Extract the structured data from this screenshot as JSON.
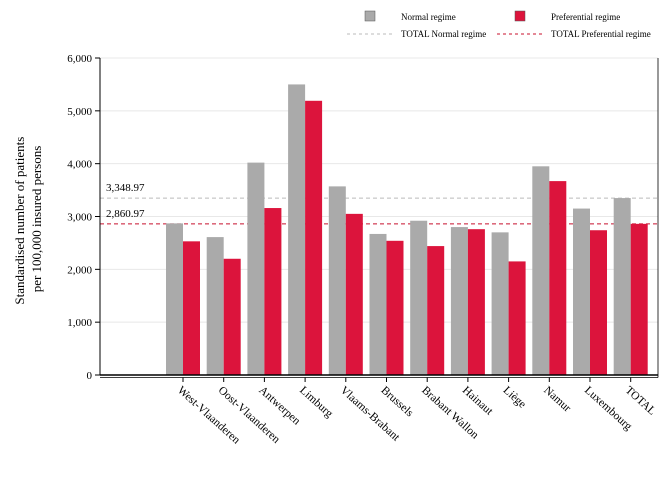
{
  "chart_data": {
    "type": "bar",
    "categories": [
      "West-Vlaanderen",
      "Oost-Vlaanderen",
      "Antwerpen",
      "Limburg",
      "Vlaams-Brabant",
      "Brussels",
      "Brabant Wallon",
      "Hainaut",
      "Liège",
      "Namur",
      "Luxembourg",
      "TOTAL"
    ],
    "series": [
      {
        "name": "Normal regime",
        "color": "#aaaaaa",
        "values": [
          2870,
          2610,
          4020,
          5500,
          3570,
          2670,
          2920,
          2800,
          2700,
          3950,
          3150,
          3349
        ]
      },
      {
        "name": "Preferential regime",
        "color": "#dc143c",
        "values": [
          2530,
          2200,
          3160,
          5190,
          3050,
          2540,
          2440,
          2760,
          2150,
          3670,
          2740,
          2861
        ]
      }
    ],
    "reference_lines": [
      {
        "name": "TOTAL Normal regime",
        "value": 3348.97,
        "label": "3,348.97",
        "color": "#bbbbbb"
      },
      {
        "name": "TOTAL Preferential regime",
        "value": 2860.97,
        "label": "2,860.97",
        "color": "#c8102e"
      }
    ],
    "ylabel_lines": [
      "Standardised number of patients",
      "per 100,000 insured persons"
    ],
    "xlabel": "",
    "ylim": [
      0,
      6000
    ],
    "yticks": [
      0,
      1000,
      2000,
      3000,
      4000,
      5000,
      6000
    ],
    "ytick_labels": [
      "0",
      "1,000",
      "2,000",
      "3,000",
      "4,000",
      "5,000",
      "6,000"
    ],
    "grid": true,
    "legend_position": "top-right"
  }
}
